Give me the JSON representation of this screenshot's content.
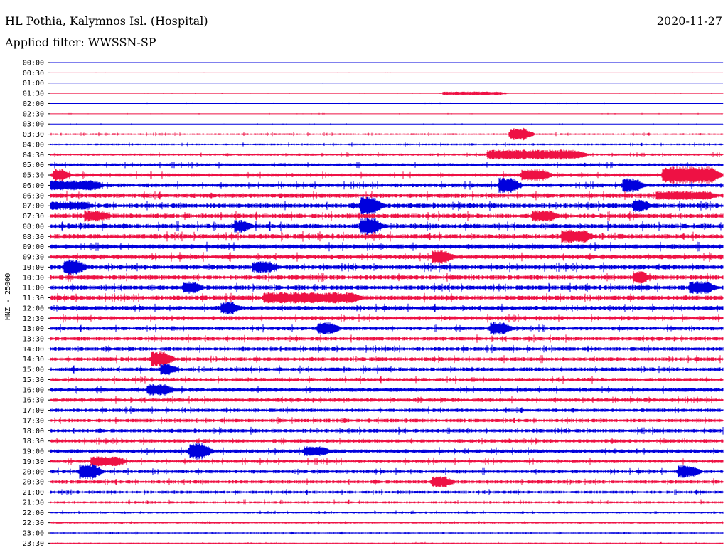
{
  "header": {
    "station": "HL Pothia, Kalymnos Isl. (Hospital)",
    "date": "2020-11-27",
    "filter": "Applied filter: WWSSN-SP"
  },
  "chart_data": {
    "type": "line",
    "title": "HL Pothia, Kalymnos Isl. (Hospital)",
    "ylabel": "HNZ - 25000",
    "xlabel": "",
    "colors": {
      "odd": "#0000dd",
      "even": "#ee1144",
      "axis": "#000000"
    },
    "time_labels": [
      "00:00",
      "00:30",
      "01:00",
      "01:30",
      "02:00",
      "02:30",
      "03:00",
      "03:30",
      "04:00",
      "04:30",
      "05:00",
      "05:30",
      "06:00",
      "06:30",
      "07:00",
      "07:30",
      "08:00",
      "08:30",
      "09:00",
      "09:30",
      "10:00",
      "10:30",
      "11:00",
      "11:30",
      "12:00",
      "12:30",
      "13:00",
      "13:30",
      "14:00",
      "14:30",
      "15:00",
      "15:30",
      "16:00",
      "16:30",
      "17:00",
      "17:30",
      "18:00",
      "18:30",
      "19:00",
      "19:30",
      "20:00",
      "20:30",
      "21:00",
      "21:30",
      "22:00",
      "22:30",
      "23:00",
      "23:30"
    ],
    "noise_amplitude": [
      0.2,
      0.3,
      0.3,
      0.4,
      0.3,
      0.5,
      0.5,
      1.2,
      1.3,
      1.6,
      2.2,
      2.5,
      2.8,
      3.2,
      3.2,
      3.2,
      3.3,
      3.4,
      3.2,
      3.2,
      3.2,
      3.0,
      3.0,
      3.1,
      2.9,
      2.9,
      2.6,
      2.6,
      2.6,
      2.6,
      2.7,
      2.6,
      2.8,
      2.5,
      2.4,
      2.4,
      2.5,
      2.4,
      2.6,
      2.5,
      2.4,
      2.4,
      2.0,
      1.6,
      1.3,
      1.2,
      1.0,
      0.8
    ],
    "events": [
      {
        "row": 3,
        "minute": 17.5,
        "duration_min": 2.5,
        "amplitude": 2.5
      },
      {
        "row": 7,
        "minute": 20.5,
        "duration_min": 0.6,
        "amplitude": 9
      },
      {
        "row": 9,
        "minute": 19.5,
        "duration_min": 4.0,
        "amplitude": 7
      },
      {
        "row": 11,
        "minute": 0.1,
        "duration_min": 0.4,
        "amplitude": 9
      },
      {
        "row": 11,
        "minute": 21.0,
        "duration_min": 1.0,
        "amplitude": 8
      },
      {
        "row": 11,
        "minute": 27.3,
        "duration_min": 2.2,
        "amplitude": 12
      },
      {
        "row": 12,
        "minute": 0.0,
        "duration_min": 2.0,
        "amplitude": 7
      },
      {
        "row": 12,
        "minute": 20.0,
        "duration_min": 0.6,
        "amplitude": 11
      },
      {
        "row": 12,
        "minute": 25.5,
        "duration_min": 0.6,
        "amplitude": 10
      },
      {
        "row": 13,
        "minute": 27.0,
        "duration_min": 2.4,
        "amplitude": 6
      },
      {
        "row": 14,
        "minute": 0.0,
        "duration_min": 1.5,
        "amplitude": 6
      },
      {
        "row": 14,
        "minute": 13.8,
        "duration_min": 0.6,
        "amplitude": 13
      },
      {
        "row": 14,
        "minute": 26.0,
        "duration_min": 0.4,
        "amplitude": 9
      },
      {
        "row": 15,
        "minute": 1.5,
        "duration_min": 0.8,
        "amplitude": 8
      },
      {
        "row": 15,
        "minute": 21.5,
        "duration_min": 0.8,
        "amplitude": 8
      },
      {
        "row": 16,
        "minute": 8.2,
        "duration_min": 0.4,
        "amplitude": 9
      },
      {
        "row": 16,
        "minute": 13.8,
        "duration_min": 0.6,
        "amplitude": 13
      },
      {
        "row": 17,
        "minute": 22.8,
        "duration_min": 1.0,
        "amplitude": 10
      },
      {
        "row": 19,
        "minute": 17.0,
        "duration_min": 0.6,
        "amplitude": 10
      },
      {
        "row": 20,
        "minute": 0.6,
        "duration_min": 0.6,
        "amplitude": 11
      },
      {
        "row": 20,
        "minute": 9.0,
        "duration_min": 0.8,
        "amplitude": 8
      },
      {
        "row": 21,
        "minute": 26.0,
        "duration_min": 0.4,
        "amplitude": 9
      },
      {
        "row": 22,
        "minute": 5.9,
        "duration_min": 0.5,
        "amplitude": 9
      },
      {
        "row": 22,
        "minute": 28.5,
        "duration_min": 0.8,
        "amplitude": 9
      },
      {
        "row": 23,
        "minute": 9.5,
        "duration_min": 4.0,
        "amplitude": 8
      },
      {
        "row": 24,
        "minute": 7.6,
        "duration_min": 0.5,
        "amplitude": 9
      },
      {
        "row": 26,
        "minute": 11.9,
        "duration_min": 0.6,
        "amplitude": 9
      },
      {
        "row": 26,
        "minute": 19.6,
        "duration_min": 0.6,
        "amplitude": 9
      },
      {
        "row": 29,
        "minute": 4.5,
        "duration_min": 0.6,
        "amplitude": 11
      },
      {
        "row": 30,
        "minute": 4.9,
        "duration_min": 0.4,
        "amplitude": 8
      },
      {
        "row": 32,
        "minute": 4.3,
        "duration_min": 0.8,
        "amplitude": 8
      },
      {
        "row": 38,
        "minute": 6.2,
        "duration_min": 0.6,
        "amplitude": 12
      },
      {
        "row": 38,
        "minute": 11.3,
        "duration_min": 0.8,
        "amplitude": 7
      },
      {
        "row": 39,
        "minute": 1.8,
        "duration_min": 1.2,
        "amplitude": 7
      },
      {
        "row": 40,
        "minute": 1.3,
        "duration_min": 0.6,
        "amplitude": 11
      },
      {
        "row": 40,
        "minute": 28.0,
        "duration_min": 0.6,
        "amplitude": 9
      },
      {
        "row": 41,
        "minute": 17.0,
        "duration_min": 0.6,
        "amplitude": 8
      }
    ]
  }
}
